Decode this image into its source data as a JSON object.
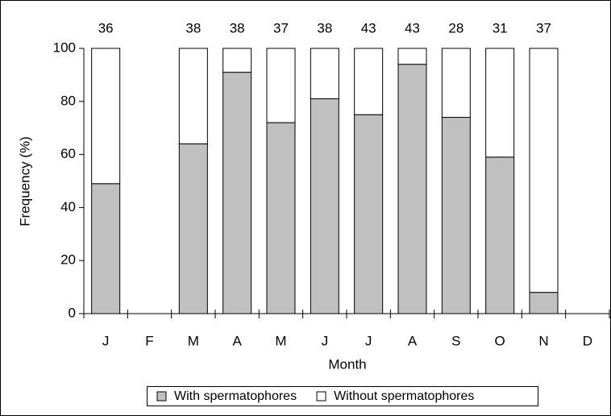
{
  "chart_data": {
    "type": "bar",
    "stacked": true,
    "categories": [
      "J",
      "F",
      "M",
      "A",
      "M",
      "J",
      "J",
      "A",
      "S",
      "O",
      "N",
      "D"
    ],
    "series": [
      {
        "name": "With spermatophores",
        "color": "#c0c0c0",
        "values": [
          49,
          null,
          64,
          91,
          72,
          81,
          75,
          94,
          74,
          59,
          8,
          null
        ]
      },
      {
        "name": "Without spermatophores",
        "color": "#ffffff",
        "values": [
          51,
          null,
          36,
          9,
          28,
          19,
          25,
          6,
          26,
          41,
          92,
          null
        ]
      }
    ],
    "sample_sizes": [
      36,
      null,
      38,
      38,
      37,
      38,
      43,
      43,
      28,
      31,
      37,
      null
    ],
    "x_label": "Month",
    "y_label": "Frequency (%)",
    "ylim": [
      0,
      100
    ],
    "yticks": [
      0,
      20,
      40,
      60,
      80,
      100
    ],
    "legend": "bottom"
  }
}
